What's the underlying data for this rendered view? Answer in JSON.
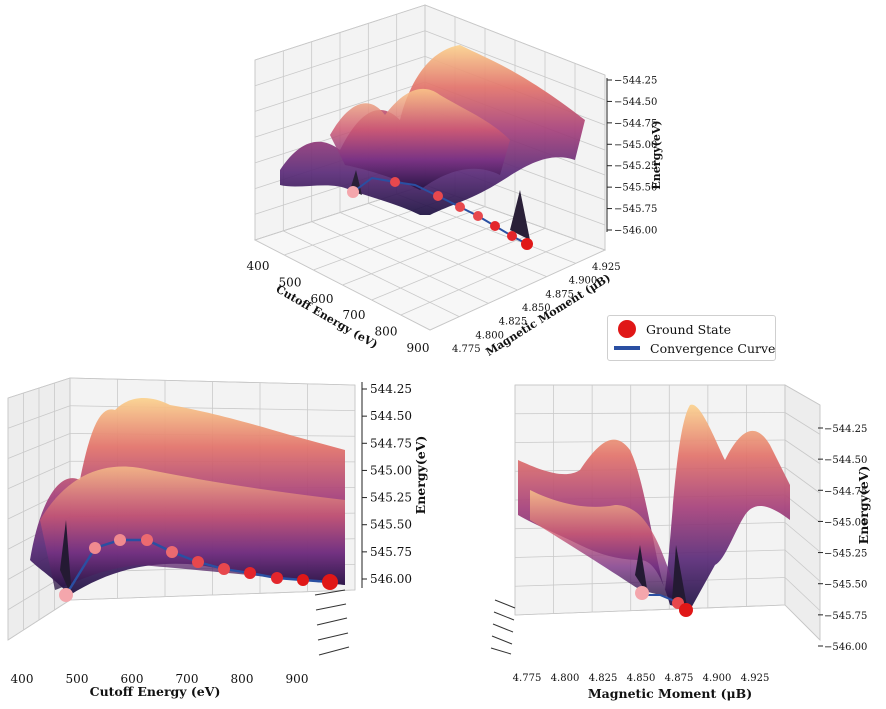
{
  "legend": {
    "ground_state": "Ground State",
    "convergence_curve": "Convergence Curve",
    "ground_color": "#e01717",
    "curve_color": "#2a4fa2"
  },
  "chart_data": [
    {
      "type": "surface3d",
      "view": "isometric",
      "xlabel": "Cutoff Energy (eV)",
      "ylabel": "Magnetic Moment (μB)",
      "zlabel": "Energy(eV)",
      "xticks": [
        "400",
        "500",
        "600",
        "700",
        "800",
        "900"
      ],
      "yticks": [
        "4.775",
        "4.800",
        "4.825",
        "4.850",
        "4.875",
        "4.900",
        "4.925"
      ],
      "zticks": [
        "−544.25",
        "−544.50",
        "−544.75",
        "−545.00",
        "−545.25",
        "−545.50",
        "−545.75",
        "−546.00"
      ],
      "xlim": [
        400,
        900
      ],
      "ylim": [
        4.775,
        4.925
      ],
      "zlim": [
        -546.0,
        -544.25
      ],
      "colormap": "magma"
    },
    {
      "type": "surface3d",
      "view": "energy vs cutoff",
      "xlabel": "Cutoff Energy (eV)",
      "zlabel": "Energy(eV)",
      "xticks": [
        "400",
        "500",
        "600",
        "700",
        "800",
        "900"
      ],
      "zticks": [
        "544.25",
        "544.50",
        "544.75",
        "545.00",
        "545.25",
        "545.50",
        "545.75",
        "546.00"
      ],
      "xlim": [
        400,
        900
      ],
      "zlim": [
        -546.0,
        -544.25
      ],
      "colormap": "magma"
    },
    {
      "type": "surface3d",
      "view": "energy vs magnetic moment",
      "xlabel": "Magnetic Moment (μB)",
      "zlabel": "Energy(eV)",
      "xticks": [
        "4.775",
        "4.800",
        "4.825",
        "4.850",
        "4.875",
        "4.900",
        "4.925"
      ],
      "zticks": [
        "−544.25",
        "−544.50",
        "−544.75",
        "−545.00",
        "−545.25",
        "−545.50",
        "−545.75",
        "−546.00"
      ],
      "xlim": [
        4.775,
        4.925
      ],
      "zlim": [
        -546.0,
        -544.25
      ],
      "colormap": "magma"
    }
  ],
  "ground_states": {
    "cutoff_ev": [
      400,
      450,
      500,
      550,
      600,
      650,
      700,
      750,
      800,
      850,
      900
    ],
    "energy_ev": [
      -545.95,
      -545.6,
      -545.55,
      -545.52,
      -545.6,
      -545.7,
      -545.78,
      -545.82,
      -545.85,
      -545.88,
      -545.9
    ],
    "magnetic_moment_ub": [
      4.845,
      4.87,
      4.87,
      4.87,
      4.87,
      4.87,
      4.87,
      4.87,
      4.87,
      4.87,
      4.87
    ]
  }
}
